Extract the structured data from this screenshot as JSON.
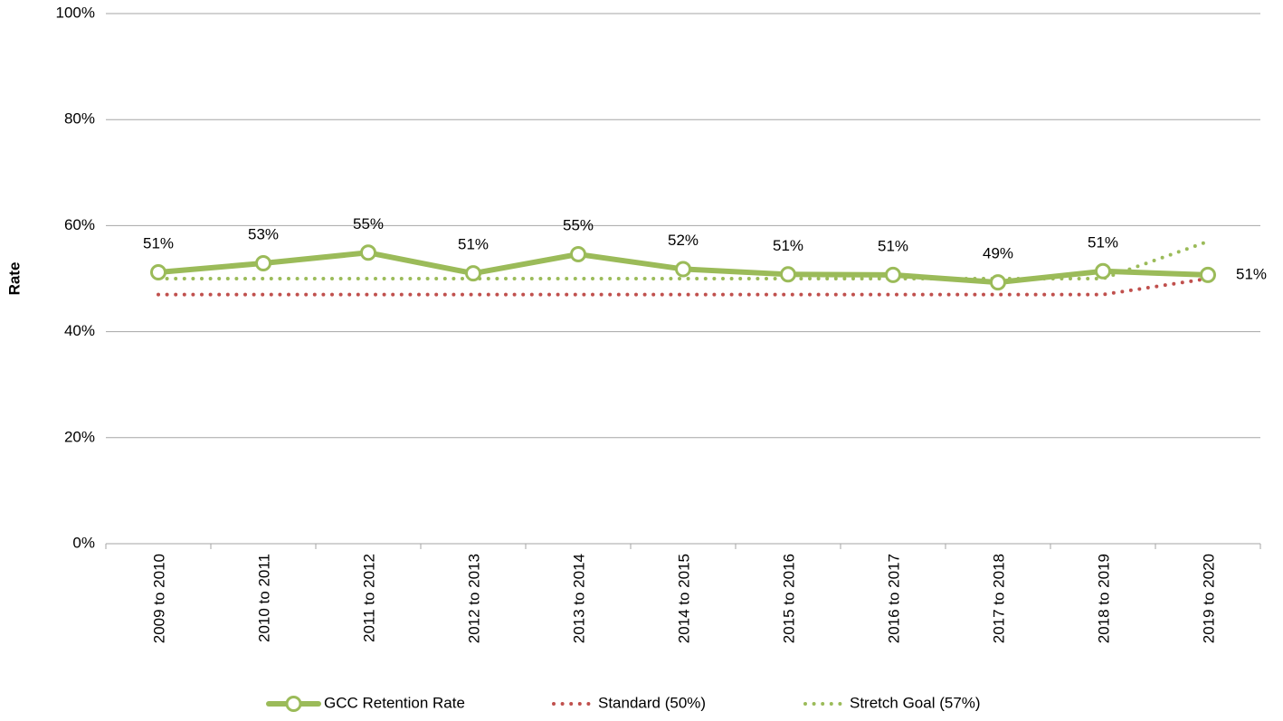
{
  "chart_data": {
    "type": "line",
    "y_label": "Rate",
    "categories": [
      "2009 to 2010",
      "2010 to 2011",
      "2011 to 2012",
      "2012 to 2013",
      "2013 to 2014",
      "2014 to 2015",
      "2015 to 2016",
      "2016 to 2017",
      "2017 to 2018",
      "2018 to 2019",
      "2019 to 2020"
    ],
    "series": [
      {
        "name": "GCC Retention Rate",
        "color": "#9bbb59",
        "style": "solid",
        "markers": true,
        "values": [
          51.2,
          52.9,
          54.9,
          51.0,
          54.6,
          51.8,
          50.8,
          50.7,
          49.3,
          51.4,
          50.7
        ],
        "value_labels": [
          "51%",
          "53%",
          "55%",
          "51%",
          "55%",
          "52%",
          "51%",
          "51%",
          "49%",
          "51%",
          "51%"
        ]
      },
      {
        "name": "Standard (50%)",
        "color": "#c0504d",
        "style": "dotted",
        "values": [
          47,
          47,
          47,
          47,
          47,
          47,
          47,
          47,
          47,
          47,
          50
        ]
      },
      {
        "name": "Stretch Goal (57%)",
        "color": "#9bbb59",
        "style": "dotted",
        "values": [
          50,
          50,
          50,
          50,
          50,
          50,
          50,
          50,
          50,
          50,
          57
        ]
      }
    ],
    "ylim": [
      0,
      100
    ],
    "yticks": [
      {
        "value": 0,
        "label": "0%"
      },
      {
        "value": 20,
        "label": "20%"
      },
      {
        "value": 40,
        "label": "40%"
      },
      {
        "value": 60,
        "label": "60%"
      },
      {
        "value": 80,
        "label": "80%"
      },
      {
        "value": 100,
        "label": "100%"
      }
    ],
    "grid": true,
    "legend": "bottom"
  }
}
